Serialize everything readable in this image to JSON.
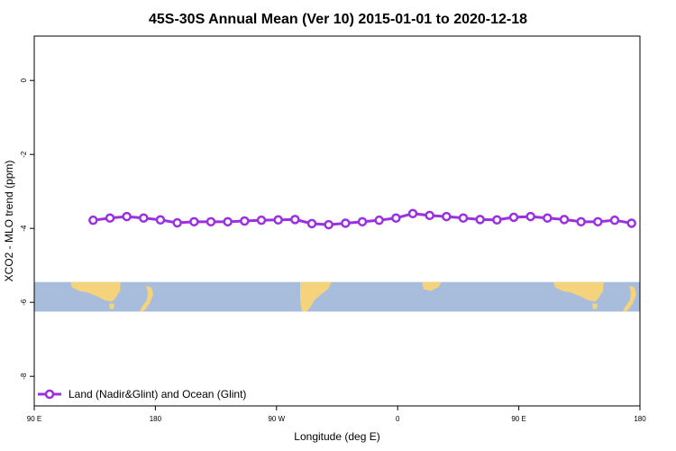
{
  "chart_data": {
    "type": "line",
    "title": "45S-30S Annual Mean (Ver 10)   2015-01-01 to 2020-12-18",
    "xlabel": "Longitude (deg E)",
    "ylabel": "XCO2 - MLO trend (ppm)",
    "x_tick_labels": [
      "90 E",
      "180",
      "90 W",
      "0",
      "90 E",
      "180"
    ],
    "y_tick_labels": [
      "0",
      "-2",
      "-4",
      "-6",
      "-8"
    ],
    "y_ticks": [
      0,
      -2,
      -4,
      -6,
      -8
    ],
    "ylim": [
      -8.8,
      1.2
    ],
    "x_index_range": [
      0,
      1080
    ],
    "grid": false,
    "legend_position": "bottom-left",
    "colors": {
      "series": "#9b30e0",
      "marker_fill": "#ffffff",
      "ocean": "#a8bcdb",
      "land": "#f5d37c"
    },
    "map_band_y_range": [
      -5.45,
      -6.25
    ],
    "series": [
      {
        "name": "Land (Nadir&Glint) and Ocean (Glint)",
        "x": [
          105,
          135,
          165,
          195,
          225,
          255,
          285,
          315,
          345,
          375,
          405,
          435,
          465,
          495,
          525,
          555,
          585,
          615,
          645,
          675,
          705,
          735,
          765,
          795,
          825,
          855,
          885,
          915,
          945,
          975,
          1005,
          1035,
          1065
        ],
        "values": [
          -3.78,
          -3.72,
          -3.68,
          -3.72,
          -3.77,
          -3.85,
          -3.82,
          -3.82,
          -3.82,
          -3.8,
          -3.78,
          -3.77,
          -3.76,
          -3.87,
          -3.9,
          -3.86,
          -3.82,
          -3.78,
          -3.72,
          -3.6,
          -3.65,
          -3.68,
          -3.72,
          -3.76,
          -3.77,
          -3.7,
          -3.68,
          -3.72,
          -3.76,
          -3.82,
          -3.82,
          -3.78,
          -3.86
        ]
      }
    ]
  }
}
